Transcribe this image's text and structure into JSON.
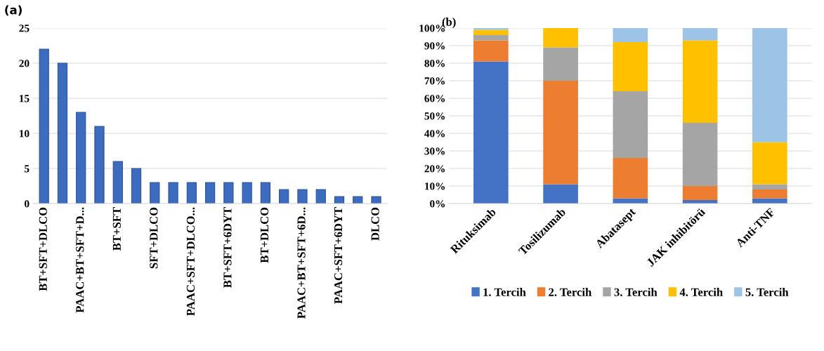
{
  "chart_data": [
    {
      "type": "bar",
      "title": "(a)",
      "categories": [
        "BT+SFT+DLCO",
        null,
        "PAAC+BT+SFT+D...",
        null,
        "BT+SFT",
        null,
        "SFT+DLCO",
        null,
        "PAAC+SFT+DLCO...",
        null,
        "BT+SFT+6DYT",
        null,
        "BT+DLCO",
        null,
        "PAAC+BT+SFT+6D...",
        null,
        "PAAC+SFT+6DYT",
        null,
        "DLCO"
      ],
      "values": [
        22,
        20,
        13,
        11,
        6,
        5,
        3,
        3,
        3,
        3,
        3,
        3,
        3,
        2,
        2,
        2,
        1,
        1,
        1
      ],
      "color": "#3b6cc0",
      "ylim": [
        0,
        25
      ],
      "yticks": [
        0,
        5,
        10,
        15,
        20,
        25
      ],
      "grid": "y",
      "legend": false
    },
    {
      "type": "bar",
      "title": "(b)",
      "stacked": true,
      "categories": [
        "Rituksimab",
        "Tosilizumab",
        "Abatasept",
        "JAK inhibitörü",
        "Anti-TNF"
      ],
      "series": [
        {
          "name": "1. Tercih",
          "color": "#4472c4",
          "values": [
            81,
            11,
            3,
            2,
            3
          ]
        },
        {
          "name": "2. Tercih",
          "color": "#ed7d31",
          "values": [
            12,
            59,
            23,
            8,
            5
          ]
        },
        {
          "name": "3. Tercih",
          "color": "#a5a5a5",
          "values": [
            3,
            19,
            38,
            36,
            3
          ]
        },
        {
          "name": "4. Tercih",
          "color": "#ffc000",
          "values": [
            3,
            11,
            28,
            47,
            24
          ]
        },
        {
          "name": "5. Tercih",
          "color": "#9dc3e6",
          "values": [
            1,
            0,
            8,
            7,
            65
          ]
        }
      ],
      "ylim": [
        0,
        100
      ],
      "yticks": [
        {
          "value": 0,
          "label": "0%"
        },
        {
          "value": 10,
          "label": "10%"
        },
        {
          "value": 20,
          "label": "20%"
        },
        {
          "value": 30,
          "label": "30%"
        },
        {
          "value": 40,
          "label": "40%"
        },
        {
          "value": 50,
          "label": "50%"
        },
        {
          "value": 60,
          "label": "60%"
        },
        {
          "value": 70,
          "label": "70%"
        },
        {
          "value": 80,
          "label": "80%"
        },
        {
          "value": 90,
          "label": "90%"
        },
        {
          "value": 100,
          "label": "100%"
        }
      ],
      "grid": "y",
      "legend": "bottom"
    }
  ]
}
